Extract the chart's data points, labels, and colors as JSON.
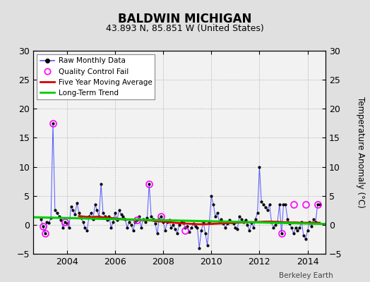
{
  "title": "BALDWIN MICHIGAN",
  "subtitle": "43.893 N, 85.851 W (United States)",
  "attribution": "Berkeley Earth",
  "ylabel": "Temperature Anomaly (°C)",
  "ylim": [
    -5,
    30
  ],
  "yticks_left": [
    -5,
    0,
    5,
    10,
    15,
    20,
    25,
    30
  ],
  "yticks_right": [
    -5,
    0,
    5,
    10,
    15,
    20,
    25,
    30
  ],
  "xlim": [
    2002.6,
    2014.75
  ],
  "xticks": [
    2004,
    2006,
    2008,
    2010,
    2012,
    2014
  ],
  "bg_color": "#e0e0e0",
  "plot_bg_color": "#f2f2f2",
  "raw_color": "#5555ff",
  "dot_color": "#000000",
  "qc_color": "#ff00ff",
  "moving_avg_color": "#dd0000",
  "trend_color": "#00cc00",
  "raw_x": [
    2002.917,
    2003.0,
    2003.083,
    2003.167,
    2003.25,
    2003.333,
    2003.417,
    2003.5,
    2003.583,
    2003.667,
    2003.75,
    2003.833,
    2003.917,
    2004.0,
    2004.083,
    2004.167,
    2004.25,
    2004.333,
    2004.417,
    2004.5,
    2004.583,
    2004.667,
    2004.75,
    2004.833,
    2004.917,
    2005.0,
    2005.083,
    2005.167,
    2005.25,
    2005.333,
    2005.417,
    2005.5,
    2005.583,
    2005.667,
    2005.75,
    2005.833,
    2005.917,
    2006.0,
    2006.083,
    2006.167,
    2006.25,
    2006.333,
    2006.417,
    2006.5,
    2006.583,
    2006.667,
    2006.75,
    2006.833,
    2006.917,
    2007.0,
    2007.083,
    2007.167,
    2007.25,
    2007.333,
    2007.417,
    2007.5,
    2007.583,
    2007.667,
    2007.75,
    2007.833,
    2007.917,
    2008.0,
    2008.083,
    2008.167,
    2008.25,
    2008.333,
    2008.417,
    2008.5,
    2008.583,
    2008.667,
    2008.75,
    2008.833,
    2008.917,
    2009.0,
    2009.083,
    2009.167,
    2009.25,
    2009.333,
    2009.417,
    2009.5,
    2009.583,
    2009.667,
    2009.75,
    2009.833,
    2009.917,
    2010.0,
    2010.083,
    2010.167,
    2010.25,
    2010.333,
    2010.417,
    2010.5,
    2010.583,
    2010.667,
    2010.75,
    2010.833,
    2010.917,
    2011.0,
    2011.083,
    2011.167,
    2011.25,
    2011.333,
    2011.417,
    2011.5,
    2011.583,
    2011.667,
    2011.75,
    2011.833,
    2011.917,
    2012.0,
    2012.083,
    2012.167,
    2012.25,
    2012.333,
    2012.417,
    2012.5,
    2012.583,
    2012.667,
    2012.75,
    2012.833,
    2012.917,
    2013.0,
    2013.083,
    2013.167,
    2013.25,
    2013.333,
    2013.417,
    2013.5,
    2013.583,
    2013.667,
    2013.75,
    2013.833,
    2013.917,
    2014.0,
    2014.083,
    2014.167,
    2014.25,
    2014.333,
    2014.417,
    2014.5
  ],
  "raw_y": [
    1.0,
    -0.3,
    -1.5,
    0.5,
    0.3,
    1.2,
    17.5,
    2.5,
    2.0,
    1.5,
    0.8,
    -0.5,
    0.5,
    0.2,
    -0.5,
    3.2,
    2.5,
    1.8,
    3.8,
    2.0,
    1.2,
    0.5,
    -0.5,
    -1.0,
    1.5,
    2.0,
    1.0,
    3.5,
    2.5,
    1.5,
    7.0,
    2.0,
    1.5,
    0.8,
    1.5,
    -0.5,
    0.5,
    2.0,
    0.8,
    2.5,
    1.8,
    1.5,
    1.0,
    -0.5,
    0.5,
    0.0,
    -1.0,
    0.5,
    0.8,
    1.5,
    -0.5,
    1.0,
    0.5,
    1.2,
    7.0,
    1.5,
    1.0,
    0.2,
    -1.5,
    1.0,
    1.5,
    0.5,
    -1.0,
    0.5,
    0.8,
    -0.5,
    0.0,
    -0.8,
    -1.5,
    0.0,
    0.5,
    0.3,
    -0.5,
    -0.3,
    -1.2,
    -0.5,
    0.2,
    -0.3,
    -0.5,
    -4.0,
    -1.0,
    0.5,
    -1.5,
    -3.5,
    0.3,
    5.0,
    3.5,
    1.5,
    2.0,
    0.5,
    1.0,
    0.2,
    -0.5,
    0.2,
    0.8,
    0.5,
    0.2,
    -0.5,
    -0.8,
    1.5,
    1.0,
    0.5,
    0.8,
    0.0,
    -1.0,
    0.3,
    -0.5,
    1.0,
    2.0,
    10.0,
    4.0,
    3.5,
    3.0,
    2.5,
    3.5,
    0.5,
    -0.5,
    0.0,
    0.5,
    3.5,
    -1.5,
    3.5,
    3.5,
    1.0,
    0.2,
    -0.5,
    -1.5,
    -0.5,
    -1.0,
    -0.5,
    0.5,
    -1.8,
    -2.5,
    -1.0,
    0.5,
    -0.3,
    1.0,
    0.5,
    3.5,
    3.5
  ],
  "qc_x": [
    2003.417,
    2003.083,
    2003.0,
    2003.917,
    2006.917,
    2007.417,
    2007.917,
    2008.917,
    2012.917,
    2013.417,
    2013.917,
    2014.417
  ],
  "qc_y": [
    17.5,
    -1.5,
    -0.3,
    0.5,
    0.8,
    7.0,
    1.5,
    -1.0,
    -1.5,
    3.5,
    3.5,
    3.5
  ],
  "moving_avg_x": [
    2004.5,
    2004.75,
    2005.0,
    2005.25,
    2005.5,
    2005.75,
    2006.0,
    2006.25,
    2006.5,
    2006.75,
    2007.0,
    2007.25,
    2007.5,
    2007.75,
    2008.0,
    2008.25,
    2008.5,
    2008.75,
    2009.0,
    2009.25,
    2009.5,
    2009.75,
    2010.0,
    2010.25,
    2010.5,
    2010.75,
    2011.0,
    2011.25,
    2011.5,
    2011.75,
    2012.0,
    2012.25,
    2012.5,
    2012.75,
    2013.0,
    2013.25,
    2013.5,
    2013.75,
    2014.0,
    2014.25,
    2014.5
  ],
  "moving_avg_y": [
    1.5,
    1.4,
    1.3,
    1.4,
    1.3,
    1.2,
    1.1,
    1.0,
    0.9,
    0.85,
    0.85,
    0.8,
    0.75,
    0.6,
    0.55,
    0.45,
    0.35,
    0.25,
    0.2,
    0.15,
    0.1,
    0.1,
    0.15,
    0.2,
    0.25,
    0.3,
    0.35,
    0.4,
    0.45,
    0.45,
    0.5,
    0.55,
    0.55,
    0.5,
    0.45,
    0.4,
    0.4,
    0.35,
    0.35,
    0.35,
    0.35
  ],
  "trend_x": [
    2002.6,
    2014.75
  ],
  "trend_y": [
    1.3,
    0.15
  ]
}
